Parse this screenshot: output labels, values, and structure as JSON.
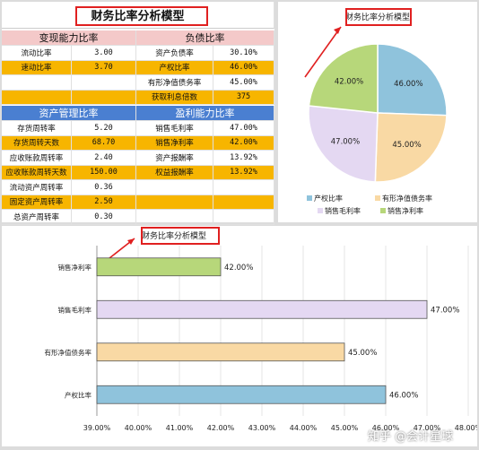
{
  "table": {
    "title": "财务比率分析模型",
    "sec_liquidity": "变现能力比率",
    "sec_debt": "负债比率",
    "sec_asset": "资产管理比率",
    "sec_profit": "盈利能力比率",
    "left_rows": [
      {
        "label": "流动比率",
        "value": "3.00",
        "hl": false
      },
      {
        "label": "速动比率",
        "value": "3.70",
        "hl": true
      },
      {
        "label": "",
        "value": "",
        "hl": false
      },
      {
        "label": "",
        "value": "",
        "hl": true
      }
    ],
    "right_rows": [
      {
        "label": "资产负债率",
        "value": "30.10%",
        "hl": false
      },
      {
        "label": "产权比率",
        "value": "46.00%",
        "hl": true
      },
      {
        "label": "有形净值债务率",
        "value": "45.00%",
        "hl": false
      },
      {
        "label": "获取利息倍数",
        "value": "375",
        "hl": true
      }
    ],
    "left_rows2": [
      {
        "label": "存货周转率",
        "value": "5.20",
        "hl": false
      },
      {
        "label": "存货周转天数",
        "value": "68.70",
        "hl": true
      },
      {
        "label": "应收账款周转率",
        "value": "2.40",
        "hl": false
      },
      {
        "label": "应收账款周转天数",
        "value": "150.00",
        "hl": true
      },
      {
        "label": "流动资产周转率",
        "value": "0.36",
        "hl": false
      },
      {
        "label": "固定资产周转率",
        "value": "2.50",
        "hl": true
      },
      {
        "label": "总资产周转率",
        "value": "0.30",
        "hl": false
      }
    ],
    "right_rows2": [
      {
        "label": "销售毛利率",
        "value": "47.00%",
        "hl": false
      },
      {
        "label": "销售净利率",
        "value": "42.00%",
        "hl": true
      },
      {
        "label": "资产报酬率",
        "value": "13.92%",
        "hl": false
      },
      {
        "label": "权益报酬率",
        "value": "13.92%",
        "hl": true
      },
      {
        "label": "",
        "value": "",
        "hl": false
      },
      {
        "label": "",
        "value": "",
        "hl": true
      },
      {
        "label": "",
        "value": "",
        "hl": false
      }
    ]
  },
  "chart_data": [
    {
      "type": "pie",
      "title": "财务比率分析模型",
      "categories": [
        "产权比率",
        "有形净值债务率",
        "销售毛利率",
        "销售净利率"
      ],
      "values": [
        46.0,
        45.0,
        47.0,
        42.0
      ],
      "labels": [
        "46.00%",
        "45.00%",
        "47.00%",
        "42.00%"
      ],
      "colors": [
        "#8fc3dc",
        "#f9d9a4",
        "#e4d8f2",
        "#b7d77a"
      ],
      "legend": "bottom"
    },
    {
      "type": "bar",
      "orientation": "horizontal",
      "title": "财务比率分析模型",
      "categories": [
        "产权比率",
        "有形净值债务率",
        "销售毛利率",
        "销售净利率"
      ],
      "values": [
        46.0,
        45.0,
        47.0,
        42.0
      ],
      "labels": [
        "46.00%",
        "45.00%",
        "47.00%",
        "42.00%"
      ],
      "colors": [
        "#8fc3dc",
        "#f9d9a4",
        "#e4d8f2",
        "#b7d77a"
      ],
      "xlim": [
        39,
        48
      ],
      "xticks": [
        "39.00%",
        "40.00%",
        "41.00%",
        "42.00%",
        "43.00%",
        "44.00%",
        "45.00%",
        "46.00%",
        "47.00%",
        "48.00%"
      ],
      "grid": true
    }
  ],
  "watermark": "知乎 @会计星球"
}
